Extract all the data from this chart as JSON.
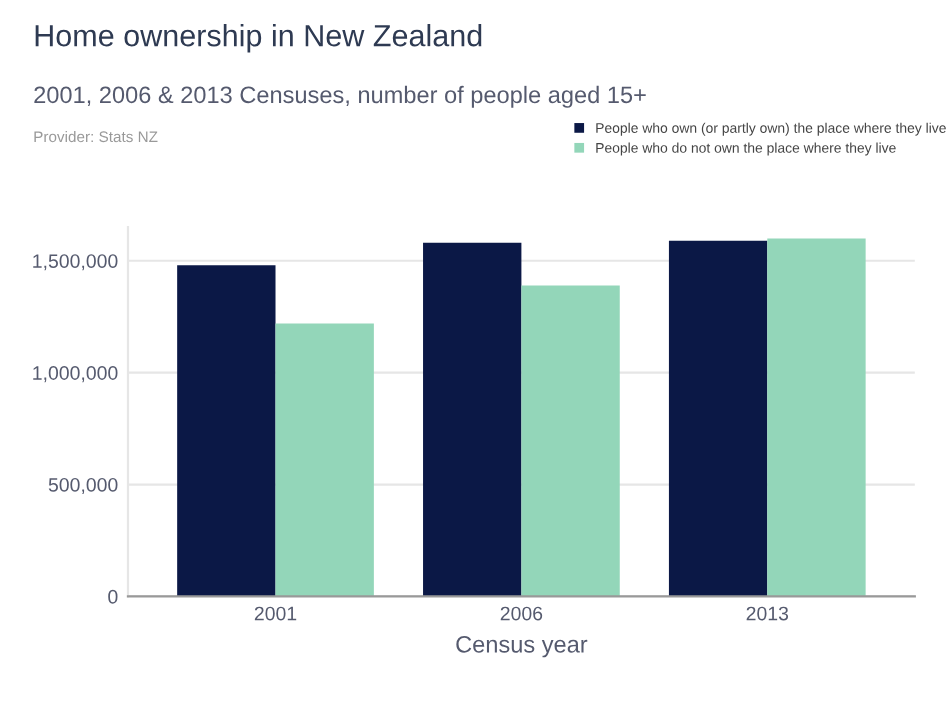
{
  "chart_data": {
    "type": "bar",
    "title": "Home ownership in New Zealand",
    "subtitle": "2001, 2006 & 2013 Censuses, number of people aged 15+",
    "annotations": [
      "Provider: Stats NZ"
    ],
    "xlabel": "Census year",
    "categories": [
      "2001",
      "2006",
      "2013"
    ],
    "series": [
      {
        "name": "People who own (or partly own) the place where they live",
        "color": "#0b1846",
        "values": [
          1480000,
          1580000,
          1590000
        ]
      },
      {
        "name": "People who do not own the place where they live",
        "color": "#93d6b9",
        "values": [
          1220000,
          1390000,
          1600000
        ]
      }
    ],
    "ylim": [
      0,
      1650000
    ],
    "yticks": [
      {
        "value": 0,
        "label": "0"
      },
      {
        "value": 500000,
        "label": "500,000"
      },
      {
        "value": 1000000,
        "label": "1,000,000"
      },
      {
        "value": 1500000,
        "label": "1,500,000"
      }
    ],
    "grid": "y",
    "legend": "top right"
  }
}
